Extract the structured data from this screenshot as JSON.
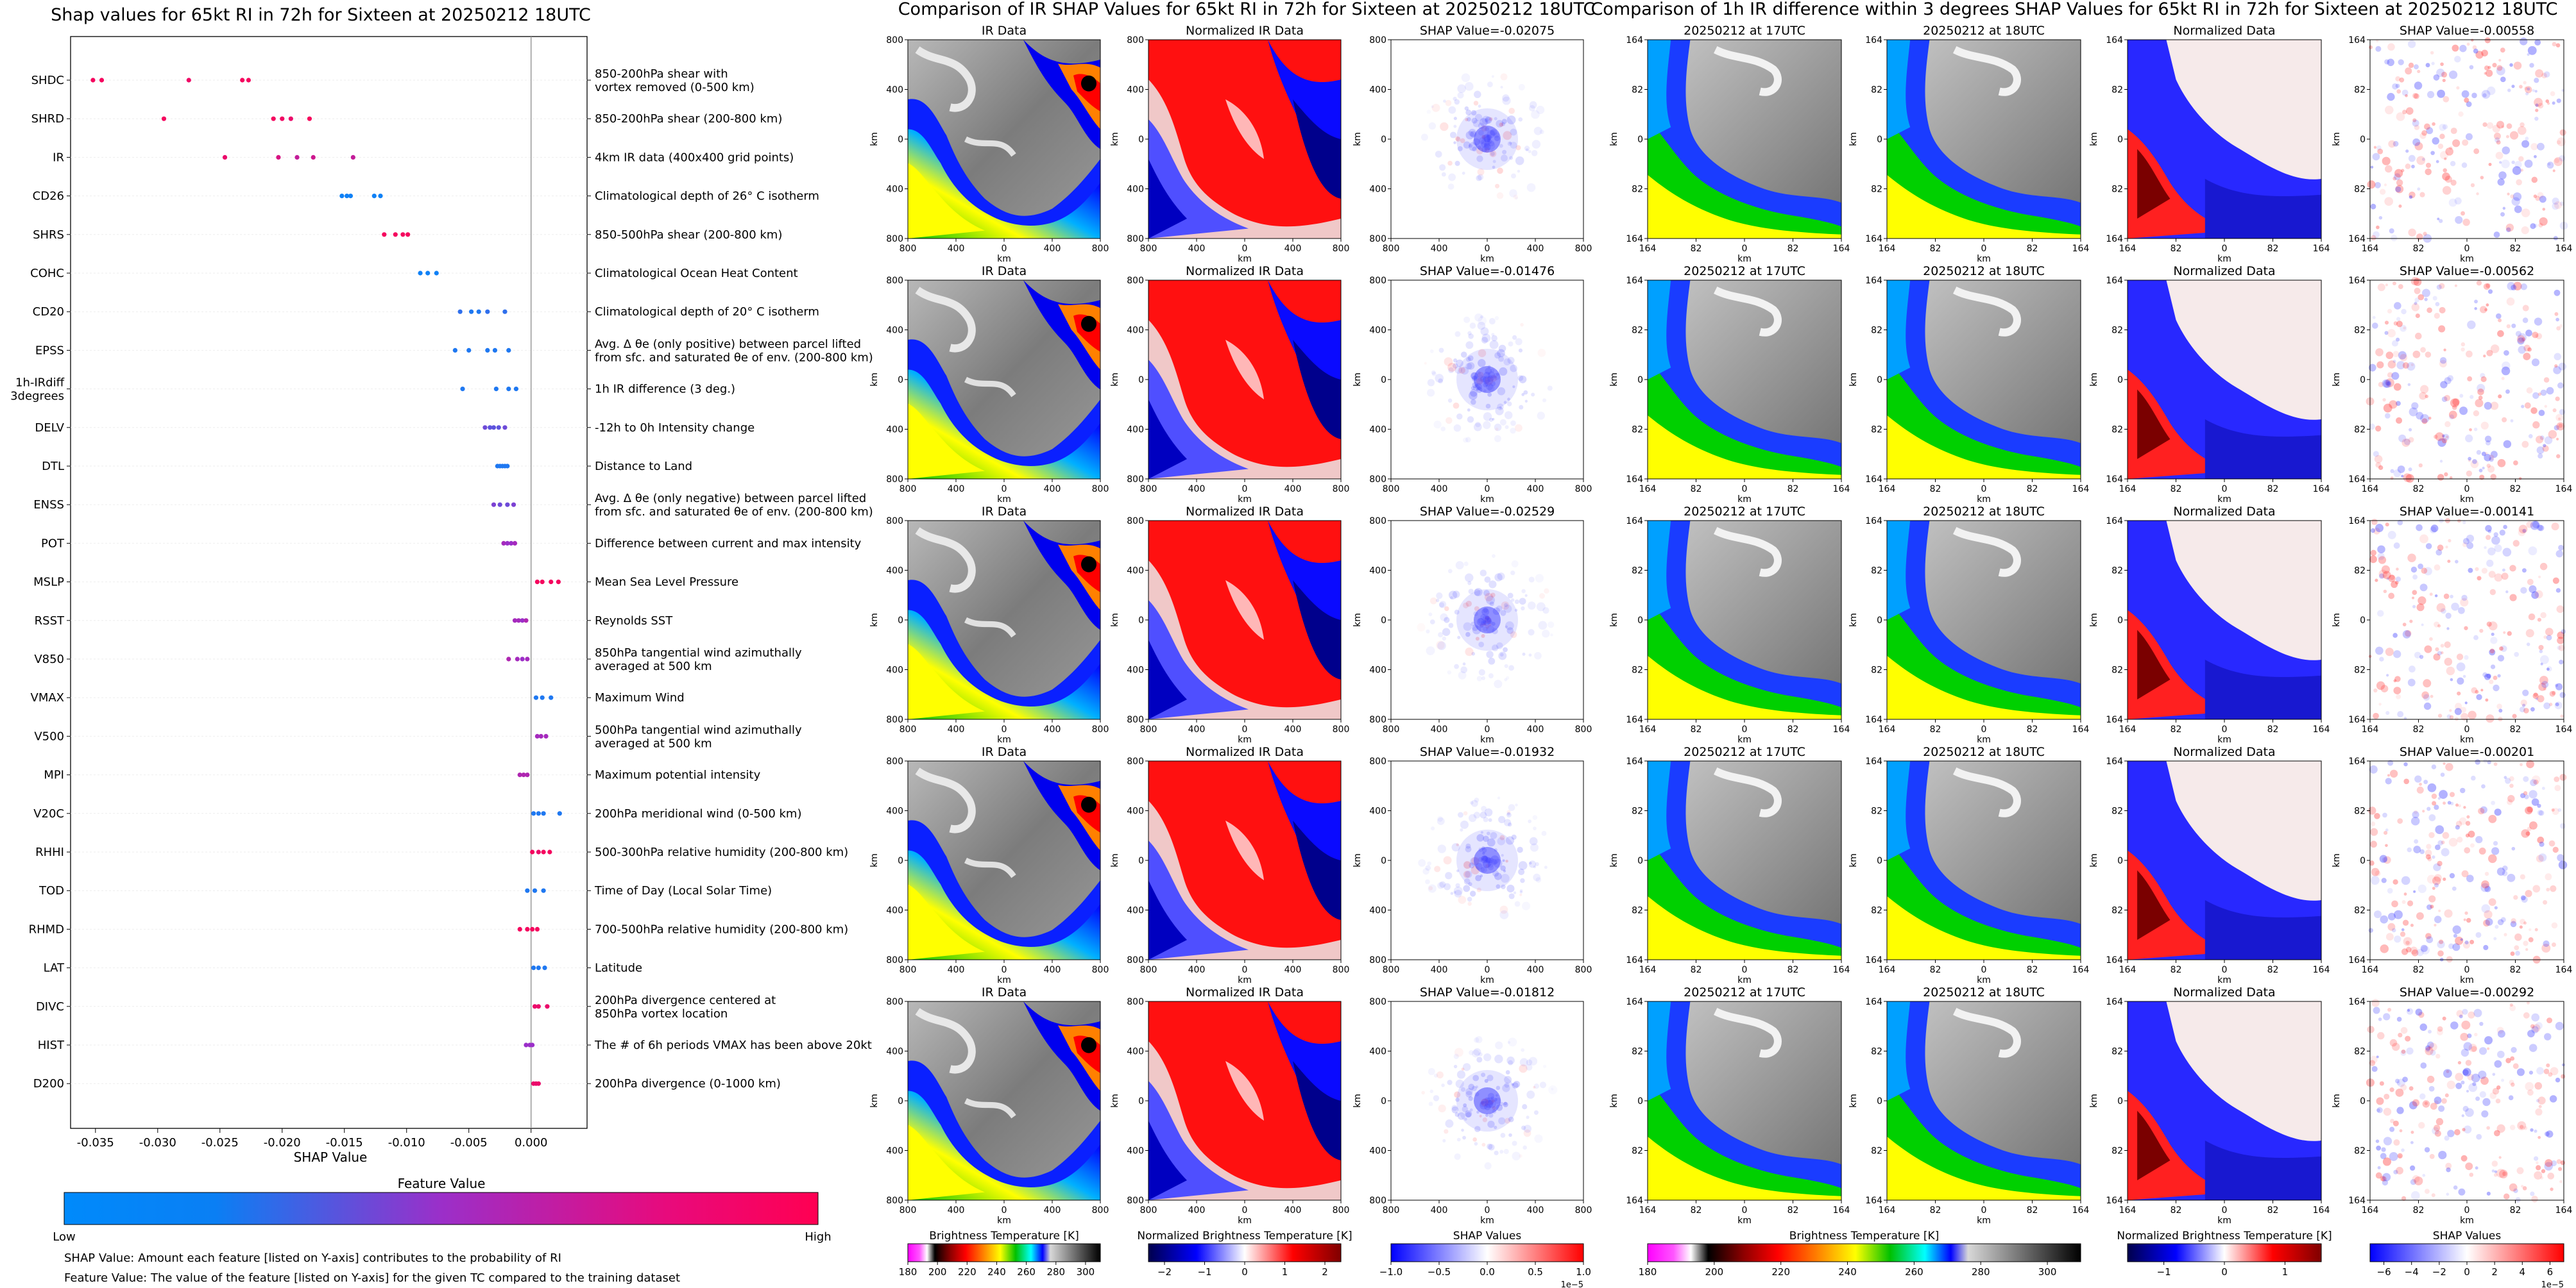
{
  "colors": {
    "feature_low": "#008afb",
    "feature_mid": "#9b2fc9",
    "feature_high": "#ff0052",
    "axis": "#000000",
    "zero_line": "#999999",
    "grid": "#eeeeee"
  },
  "shap_panel": {
    "title": "Shap values for 65kt RI in 72h for Sixteen at 20250212 18UTC",
    "xlabel": "SHAP Value",
    "feature_value_title": "Feature Value",
    "low_label": "Low",
    "high_label": "High",
    "note_1": "SHAP Value: Amount each feature [listed on Y-axis] contributes to the probability of RI",
    "note_2": "Feature Value: The value of the feature [listed on Y-axis] for the given TC compared to the training dataset"
  },
  "chart_data": [
    {
      "type": "scatter",
      "title": "Shap values for 65kt RI in 72h for Sixteen at 20250212 18UTC",
      "xlabel": "SHAP Value",
      "xlim": [
        -0.037,
        0.0045
      ],
      "xticks": [
        "-0.035",
        "-0.030",
        "-0.025",
        "-0.020",
        "-0.015",
        "-0.010",
        "-0.005",
        "0.000"
      ],
      "xtick_values": [
        -0.035,
        -0.03,
        -0.025,
        -0.02,
        -0.015,
        -0.01,
        -0.005,
        0.0
      ],
      "features": [
        {
          "code": "SHDC",
          "desc": [
            "850-200hPa shear with",
            "vortex removed (0-500 km)"
          ],
          "points": [
            [
              -0.0352,
              0.95
            ],
            [
              -0.0345,
              0.95
            ],
            [
              -0.0275,
              0.92
            ],
            [
              -0.0232,
              0.95
            ],
            [
              -0.0227,
              0.95
            ]
          ]
        },
        {
          "code": "SHRD",
          "desc": [
            "850-200hPa shear (200-800 km)"
          ],
          "points": [
            [
              -0.0295,
              0.95
            ],
            [
              -0.0207,
              0.95
            ],
            [
              -0.02,
              0.93
            ],
            [
              -0.0193,
              0.9
            ],
            [
              -0.0178,
              0.96
            ]
          ]
        },
        {
          "code": "IR",
          "desc": [
            "4km IR data (400x400 grid points)"
          ],
          "points": [
            [
              -0.0246,
              0.9
            ],
            [
              -0.0203,
              0.8
            ],
            [
              -0.0188,
              0.7
            ],
            [
              -0.0175,
              0.75
            ],
            [
              -0.0143,
              0.7
            ]
          ]
        },
        {
          "code": "CD26",
          "desc": [
            "Climatological depth of 26° C isotherm"
          ],
          "points": [
            [
              -0.0152,
              0.05
            ],
            [
              -0.0148,
              0.05
            ],
            [
              -0.0145,
              0.05
            ],
            [
              -0.0126,
              0.05
            ],
            [
              -0.0121,
              0.05
            ]
          ]
        },
        {
          "code": "SHRS",
          "desc": [
            "850-500hPa shear (200-800 km)"
          ],
          "points": [
            [
              -0.0118,
              0.95
            ],
            [
              -0.0109,
              0.95
            ],
            [
              -0.0103,
              0.95
            ],
            [
              -0.0099,
              0.95
            ]
          ]
        },
        {
          "code": "COHC",
          "desc": [
            "Climatological Ocean Heat Content"
          ],
          "points": [
            [
              -0.0089,
              0.05
            ],
            [
              -0.0083,
              0.05
            ],
            [
              -0.0076,
              0.05
            ]
          ]
        },
        {
          "code": "CD20",
          "desc": [
            "Climatological depth of 20° C isotherm"
          ],
          "points": [
            [
              -0.0057,
              0.15
            ],
            [
              -0.0048,
              0.1
            ],
            [
              -0.0042,
              0.1
            ],
            [
              -0.0035,
              0.15
            ],
            [
              -0.0021,
              0.15
            ]
          ]
        },
        {
          "code": "EPSS",
          "desc": [
            "Avg. Δ θe (only positive) between parcel lifted",
            "from sfc. and saturated θe of env. (200-800 km)"
          ],
          "points": [
            [
              -0.0061,
              0.1
            ],
            [
              -0.005,
              0.1
            ],
            [
              -0.0035,
              0.1
            ],
            [
              -0.0029,
              0.1
            ],
            [
              -0.0018,
              0.1
            ]
          ]
        },
        {
          "code": "1h-IRdiff|3degrees",
          "desc": [
            "1h IR difference (3 deg.)"
          ],
          "points": [
            [
              -0.0055,
              0.1
            ],
            [
              -0.0028,
              0.1
            ],
            [
              -0.0018,
              0.1
            ],
            [
              -0.0012,
              0.1
            ]
          ]
        },
        {
          "code": "DELV",
          "desc": [
            "-12h to 0h Intensity change"
          ],
          "points": [
            [
              -0.0037,
              0.35
            ],
            [
              -0.0033,
              0.3
            ],
            [
              -0.003,
              0.3
            ],
            [
              -0.0026,
              0.3
            ],
            [
              -0.0021,
              0.35
            ]
          ]
        },
        {
          "code": "DTL",
          "desc": [
            "Distance to Land"
          ],
          "points": [
            [
              -0.0027,
              0.1
            ],
            [
              -0.0025,
              0.1
            ],
            [
              -0.0023,
              0.1
            ],
            [
              -0.0021,
              0.1
            ],
            [
              -0.0019,
              0.1
            ]
          ]
        },
        {
          "code": "ENSS",
          "desc": [
            "Avg. Δ θe (only negative) between parcel lifted",
            "from sfc. and saturated θe of env. (200-800 km)"
          ],
          "points": [
            [
              -0.003,
              0.4
            ],
            [
              -0.0025,
              0.35
            ],
            [
              -0.0019,
              0.35
            ],
            [
              -0.0014,
              0.4
            ]
          ]
        },
        {
          "code": "POT",
          "desc": [
            "Difference between current and max intensity"
          ],
          "points": [
            [
              -0.0022,
              0.55
            ],
            [
              -0.0019,
              0.5
            ],
            [
              -0.0016,
              0.5
            ],
            [
              -0.0013,
              0.55
            ]
          ]
        },
        {
          "code": "MSLP",
          "desc": [
            "Mean Sea Level Pressure"
          ],
          "points": [
            [
              0.0005,
              0.95
            ],
            [
              0.0009,
              0.95
            ],
            [
              0.0016,
              0.95
            ],
            [
              0.0022,
              0.95
            ]
          ]
        },
        {
          "code": "RSST",
          "desc": [
            "Reynolds SST"
          ],
          "points": [
            [
              -0.0013,
              0.55
            ],
            [
              -0.001,
              0.55
            ],
            [
              -0.0007,
              0.5
            ],
            [
              -0.0004,
              0.6
            ]
          ]
        },
        {
          "code": "V850",
          "desc": [
            "850hPa tangential wind azimuthally",
            "averaged at 500 km"
          ],
          "points": [
            [
              -0.0018,
              0.6
            ],
            [
              -0.0011,
              0.55
            ],
            [
              -0.0007,
              0.5
            ],
            [
              -0.0003,
              0.55
            ]
          ]
        },
        {
          "code": "VMAX",
          "desc": [
            "Maximum Wind"
          ],
          "points": [
            [
              0.0004,
              0.1
            ],
            [
              0.0009,
              0.1
            ],
            [
              0.0016,
              0.1
            ]
          ]
        },
        {
          "code": "V500",
          "desc": [
            "500hPa tangential wind azimuthally",
            "averaged at 500 km"
          ],
          "points": [
            [
              0.0005,
              0.55
            ],
            [
              0.0008,
              0.55
            ],
            [
              0.0012,
              0.55
            ]
          ]
        },
        {
          "code": "MPI",
          "desc": [
            "Maximum potential intensity"
          ],
          "points": [
            [
              -0.0009,
              0.6
            ],
            [
              -0.0006,
              0.6
            ],
            [
              -0.0003,
              0.6
            ]
          ]
        },
        {
          "code": "V20C",
          "desc": [
            "200hPa meridional wind (0-500 km)"
          ],
          "points": [
            [
              0.0002,
              0.1
            ],
            [
              0.0006,
              0.1
            ],
            [
              0.001,
              0.1
            ],
            [
              0.0023,
              0.1
            ]
          ]
        },
        {
          "code": "RHHI",
          "desc": [
            "500-300hPa relative humidity (200-800 km)"
          ],
          "points": [
            [
              0.0001,
              0.95
            ],
            [
              0.0006,
              0.9
            ],
            [
              0.001,
              0.95
            ],
            [
              0.0015,
              0.95
            ]
          ]
        },
        {
          "code": "TOD",
          "desc": [
            "Time of Day (Local Solar Time)"
          ],
          "points": [
            [
              -0.0003,
              0.1
            ],
            [
              0.0003,
              0.1
            ],
            [
              0.001,
              0.1
            ]
          ]
        },
        {
          "code": "RHMD",
          "desc": [
            "700-500hPa relative humidity (200-800 km)"
          ],
          "points": [
            [
              -0.0009,
              0.95
            ],
            [
              -0.0003,
              0.95
            ],
            [
              0.0001,
              0.95
            ],
            [
              0.0005,
              0.95
            ]
          ]
        },
        {
          "code": "LAT",
          "desc": [
            "Latitude"
          ],
          "points": [
            [
              0.0002,
              0.1
            ],
            [
              0.0006,
              0.1
            ],
            [
              0.0011,
              0.1
            ]
          ]
        },
        {
          "code": "DIVC",
          "desc": [
            "200hPa divergence centered at",
            "850hPa vortex location"
          ],
          "points": [
            [
              0.0003,
              0.9
            ],
            [
              0.0006,
              0.9
            ],
            [
              0.0013,
              0.9
            ]
          ]
        },
        {
          "code": "HIST",
          "desc": [
            "The # of 6h periods VMAX has been above 20kt"
          ],
          "points": [
            [
              -0.0004,
              0.5
            ],
            [
              -0.0001,
              0.5
            ],
            [
              0.0001,
              0.5
            ]
          ]
        },
        {
          "code": "D200",
          "desc": [
            "200hPa divergence (0-1000 km)"
          ],
          "points": [
            [
              0.0002,
              0.9
            ],
            [
              0.0004,
              0.9
            ],
            [
              0.0006,
              0.9
            ]
          ]
        }
      ]
    },
    {
      "type": "heatmap",
      "title": "Comparison of IR SHAP Values for 65kt RI in 72h for Sixteen at 20250212 18UTC",
      "column_titles": [
        "IR Data",
        "Normalized IR Data"
      ],
      "shap_titles": [
        "SHAP Value=-0.02075",
        "SHAP Value=-0.01476",
        "SHAP Value=-0.02529",
        "SHAP Value=-0.01932",
        "SHAP Value=-0.01812"
      ],
      "xlabel": "km",
      "ylabel": "km",
      "xticks": [
        "800",
        "400",
        "0",
        "400",
        "800"
      ],
      "yticks": [
        "800",
        "400",
        "0",
        "400",
        "800"
      ],
      "colorbars": [
        {
          "label": "Brightness Temperature [K]",
          "ticks": [
            "180",
            "200",
            "220",
            "240",
            "260",
            "280",
            "300"
          ],
          "range": [
            180,
            310
          ]
        },
        {
          "label": "Normalized Brightness Temperature [K]",
          "ticks": [
            "−2",
            "−1",
            "0",
            "1",
            "2"
          ],
          "range": [
            -2.4,
            2.4
          ]
        },
        {
          "label": "SHAP Values",
          "ticks": [
            "−1.0",
            "−0.5",
            "0.0",
            "0.5",
            "1.0"
          ],
          "range": [
            -1.0,
            1.0
          ],
          "scale": "1e−5"
        }
      ]
    },
    {
      "type": "heatmap",
      "title": "Comparison of 1h IR difference within 3 degrees SHAP Values for 65kt RI in 72h for Sixteen at 20250212 18UTC",
      "column_titles": [
        "20250212 at 17UTC",
        "20250212 at 18UTC",
        "Normalized Data"
      ],
      "shap_titles": [
        "SHAP Value=-0.00558",
        "SHAP Value=-0.00562",
        "SHAP Value=-0.00141",
        "SHAP Value=-0.00201",
        "SHAP Value=-0.00292"
      ],
      "xlabel": "km",
      "ylabel": "km",
      "xticks": [
        "164",
        "82",
        "0",
        "82",
        "164"
      ],
      "yticks": [
        "164",
        "82",
        "0",
        "82",
        "164"
      ],
      "colorbars": [
        {
          "label": "Brightness Temperature [K]",
          "ticks": [
            "180",
            "200",
            "220",
            "240",
            "260",
            "280",
            "300"
          ],
          "range": [
            180,
            310
          ]
        },
        {
          "label": "Normalized Brightness Temperature [K]",
          "ticks": [
            "−1",
            "0",
            "1"
          ],
          "range": [
            -1.6,
            1.6
          ]
        },
        {
          "label": "SHAP Values",
          "ticks": [
            "−6",
            "−4",
            "−2",
            "0",
            "2",
            "4",
            "6"
          ],
          "range": [
            -7,
            7
          ],
          "scale": "1e−5"
        }
      ]
    }
  ]
}
